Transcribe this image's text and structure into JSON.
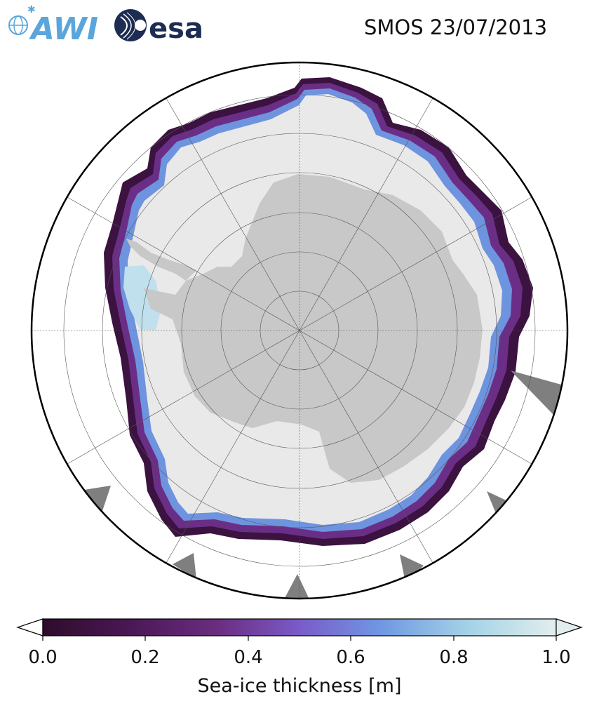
{
  "logos": {
    "awi_text": "AWI",
    "esa_text": "esa"
  },
  "title": "SMOS 23/07/2013",
  "colorbar": {
    "label": "Sea-ice thickness [m]",
    "ticks": [
      "0.0",
      "0.2",
      "0.4",
      "0.6",
      "0.8",
      "1.0"
    ],
    "min": 0.0,
    "max": 1.0,
    "extend": "both",
    "colors": [
      "#2e0c2b",
      "#4a1855",
      "#6a2d80",
      "#7a5bc9",
      "#6f98e3",
      "#a4d3e6",
      "#e2eeee"
    ]
  },
  "map": {
    "projection": "south-polar-stereographic",
    "land_color": "#c8c8c8",
    "ocean_color": "#ffffff",
    "nodata_color": "#7f7f7f",
    "thick_ice_color": "#e9e9e9"
  }
}
